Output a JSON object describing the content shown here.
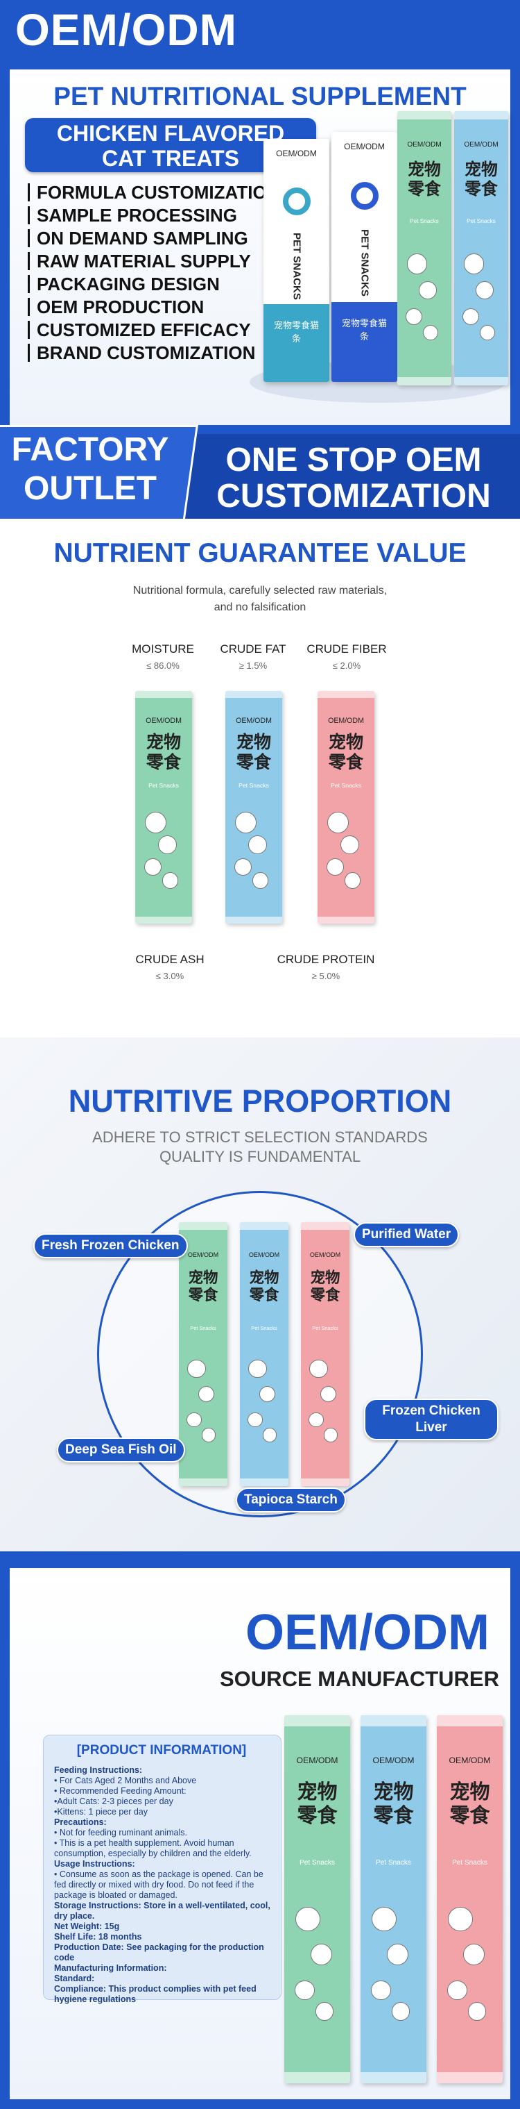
{
  "header": {
    "brand": "OEM/ODM",
    "title": "PET NUTRITIONAL SUPPLEMENT",
    "product": [
      "CHICKEN FLAVORED",
      "CAT TREATS"
    ],
    "services": [
      "FORMULA CUSTOMIZATION",
      "SAMPLE PROCESSING",
      "ON DEMAND SAMPLING",
      "RAW MATERIAL SUPPLY",
      "PACKAGING DESIGN",
      "OEM PRODUCTION",
      "CUSTOMIZED EFFICACY",
      "BRAND CUSTOMIZATION"
    ]
  },
  "hero_packet": {
    "brand": "OEM/ODM",
    "name_en": "PET SNACKS",
    "name_cn": "宠物零食猫条"
  },
  "band": {
    "left": [
      "FACTORY",
      "OUTLET"
    ],
    "right": [
      "ONE STOP OEM",
      "CUSTOMIZATION"
    ]
  },
  "nutrients": {
    "title": "NUTRIENT GUARANTEE VALUE",
    "subtitle": [
      "Nutritional formula, carefully selected raw materials,",
      "and no falsification"
    ],
    "items": [
      {
        "label": "MOISTURE",
        "value": "≤ 86.0%"
      },
      {
        "label": "CRUDE FAT",
        "value": "≥ 1.5%"
      },
      {
        "label": "CRUDE FIBER",
        "value": "≤ 2.0%"
      },
      {
        "label": "CRUDE ASH",
        "value": "≤ 3.0%"
      },
      {
        "label": "CRUDE PROTEIN",
        "value": "≥ 5.0%"
      }
    ]
  },
  "packet": {
    "brand": "OEM/ODM",
    "name_cn": [
      "宠物",
      "零食"
    ],
    "name_en": "Pet Snacks"
  },
  "proportion": {
    "title": "NUTRITIVE PROPORTION",
    "subtitle": [
      "ADHERE TO STRICT SELECTION STANDARDS",
      "QUALITY IS FUNDAMENTAL"
    ],
    "ingredients": [
      "Fresh Frozen Chicken",
      "Purified Water",
      "Frozen Chicken Liver",
      "Deep Sea Fish Oil",
      "Tapioca Starch"
    ]
  },
  "source": {
    "title": "OEM/ODM",
    "subtitle": "SOURCE MANUFACTURER",
    "info_title": "[PRODUCT INFORMATION]",
    "info": [
      "Feeding Instructions:",
      "• For Cats Aged 2 Months and Above",
      "• Recommended Feeding Amount:",
      "•Adult Cats: 2-3 pieces per day",
      "•Kittens: 1 piece per day",
      "Precautions:",
      "• Not for feeding ruminant animals.",
      "• This is a pet health supplement. Avoid human consumption, especially by children and the elderly.",
      "Usage Instructions:",
      "• Consume as soon as the package is opened. Can be fed directly or mixed with dry food. Do not feed if the package is bloated or damaged.",
      "Storage Instructions: Store in a well-ventilated, cool, dry place.",
      "Net Weight: 15g",
      "Shelf Life: 18 months",
      "Production Date: See packaging for the production code",
      "Manufacturing Information:",
      "Standard:",
      "Compliance: This product complies with pet feed hygiene regulations"
    ]
  }
}
